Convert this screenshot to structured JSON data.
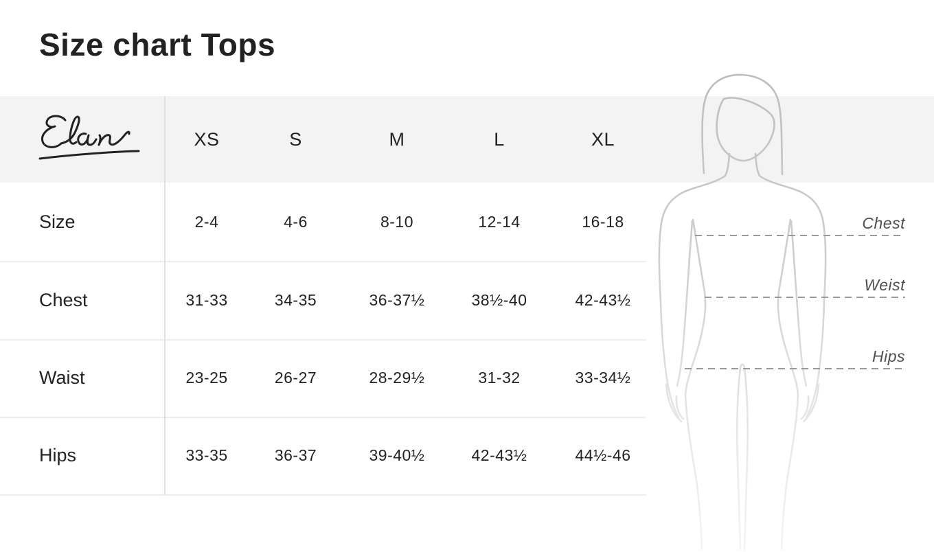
{
  "title": "Size chart Tops",
  "brand": {
    "logo_text": "Elan",
    "logo_icon": "elan-signature-logo"
  },
  "table": {
    "corner_label": "",
    "size_headers": [
      "XS",
      "S",
      "M",
      "L",
      "XL"
    ],
    "rows": [
      {
        "label": "Size",
        "values": [
          "2-4",
          "4-6",
          "8-10",
          "12-14",
          "16-18"
        ]
      },
      {
        "label": "Chest",
        "values": [
          "31-33",
          "34-35",
          "36-37½",
          "38½-40",
          "42-43½"
        ]
      },
      {
        "label": "Waist",
        "values": [
          "23-25",
          "26-27",
          "28-29½",
          "31-32",
          "33-34½"
        ]
      },
      {
        "label": "Hips",
        "values": [
          "33-35",
          "36-37",
          "39-40½",
          "42-43½",
          "44½-46"
        ]
      }
    ]
  },
  "figure": {
    "illustration_icon": "woman-body-outline-icon",
    "measure_labels": [
      {
        "text": "Chest"
      },
      {
        "text": "Weist"
      },
      {
        "text": "Hips"
      }
    ]
  },
  "colors": {
    "header_band": "#f3f3f3",
    "divider": "#e0e0e0",
    "row_line": "#ededed",
    "text_dark": "#222222",
    "label_gray": "#4f4f4f",
    "dash_line": "#9a9a9a",
    "figure_stroke_dark": "#bdbdbd",
    "figure_stroke_mid": "#d2d2d2",
    "figure_stroke_light": "#f4f4f4"
  }
}
